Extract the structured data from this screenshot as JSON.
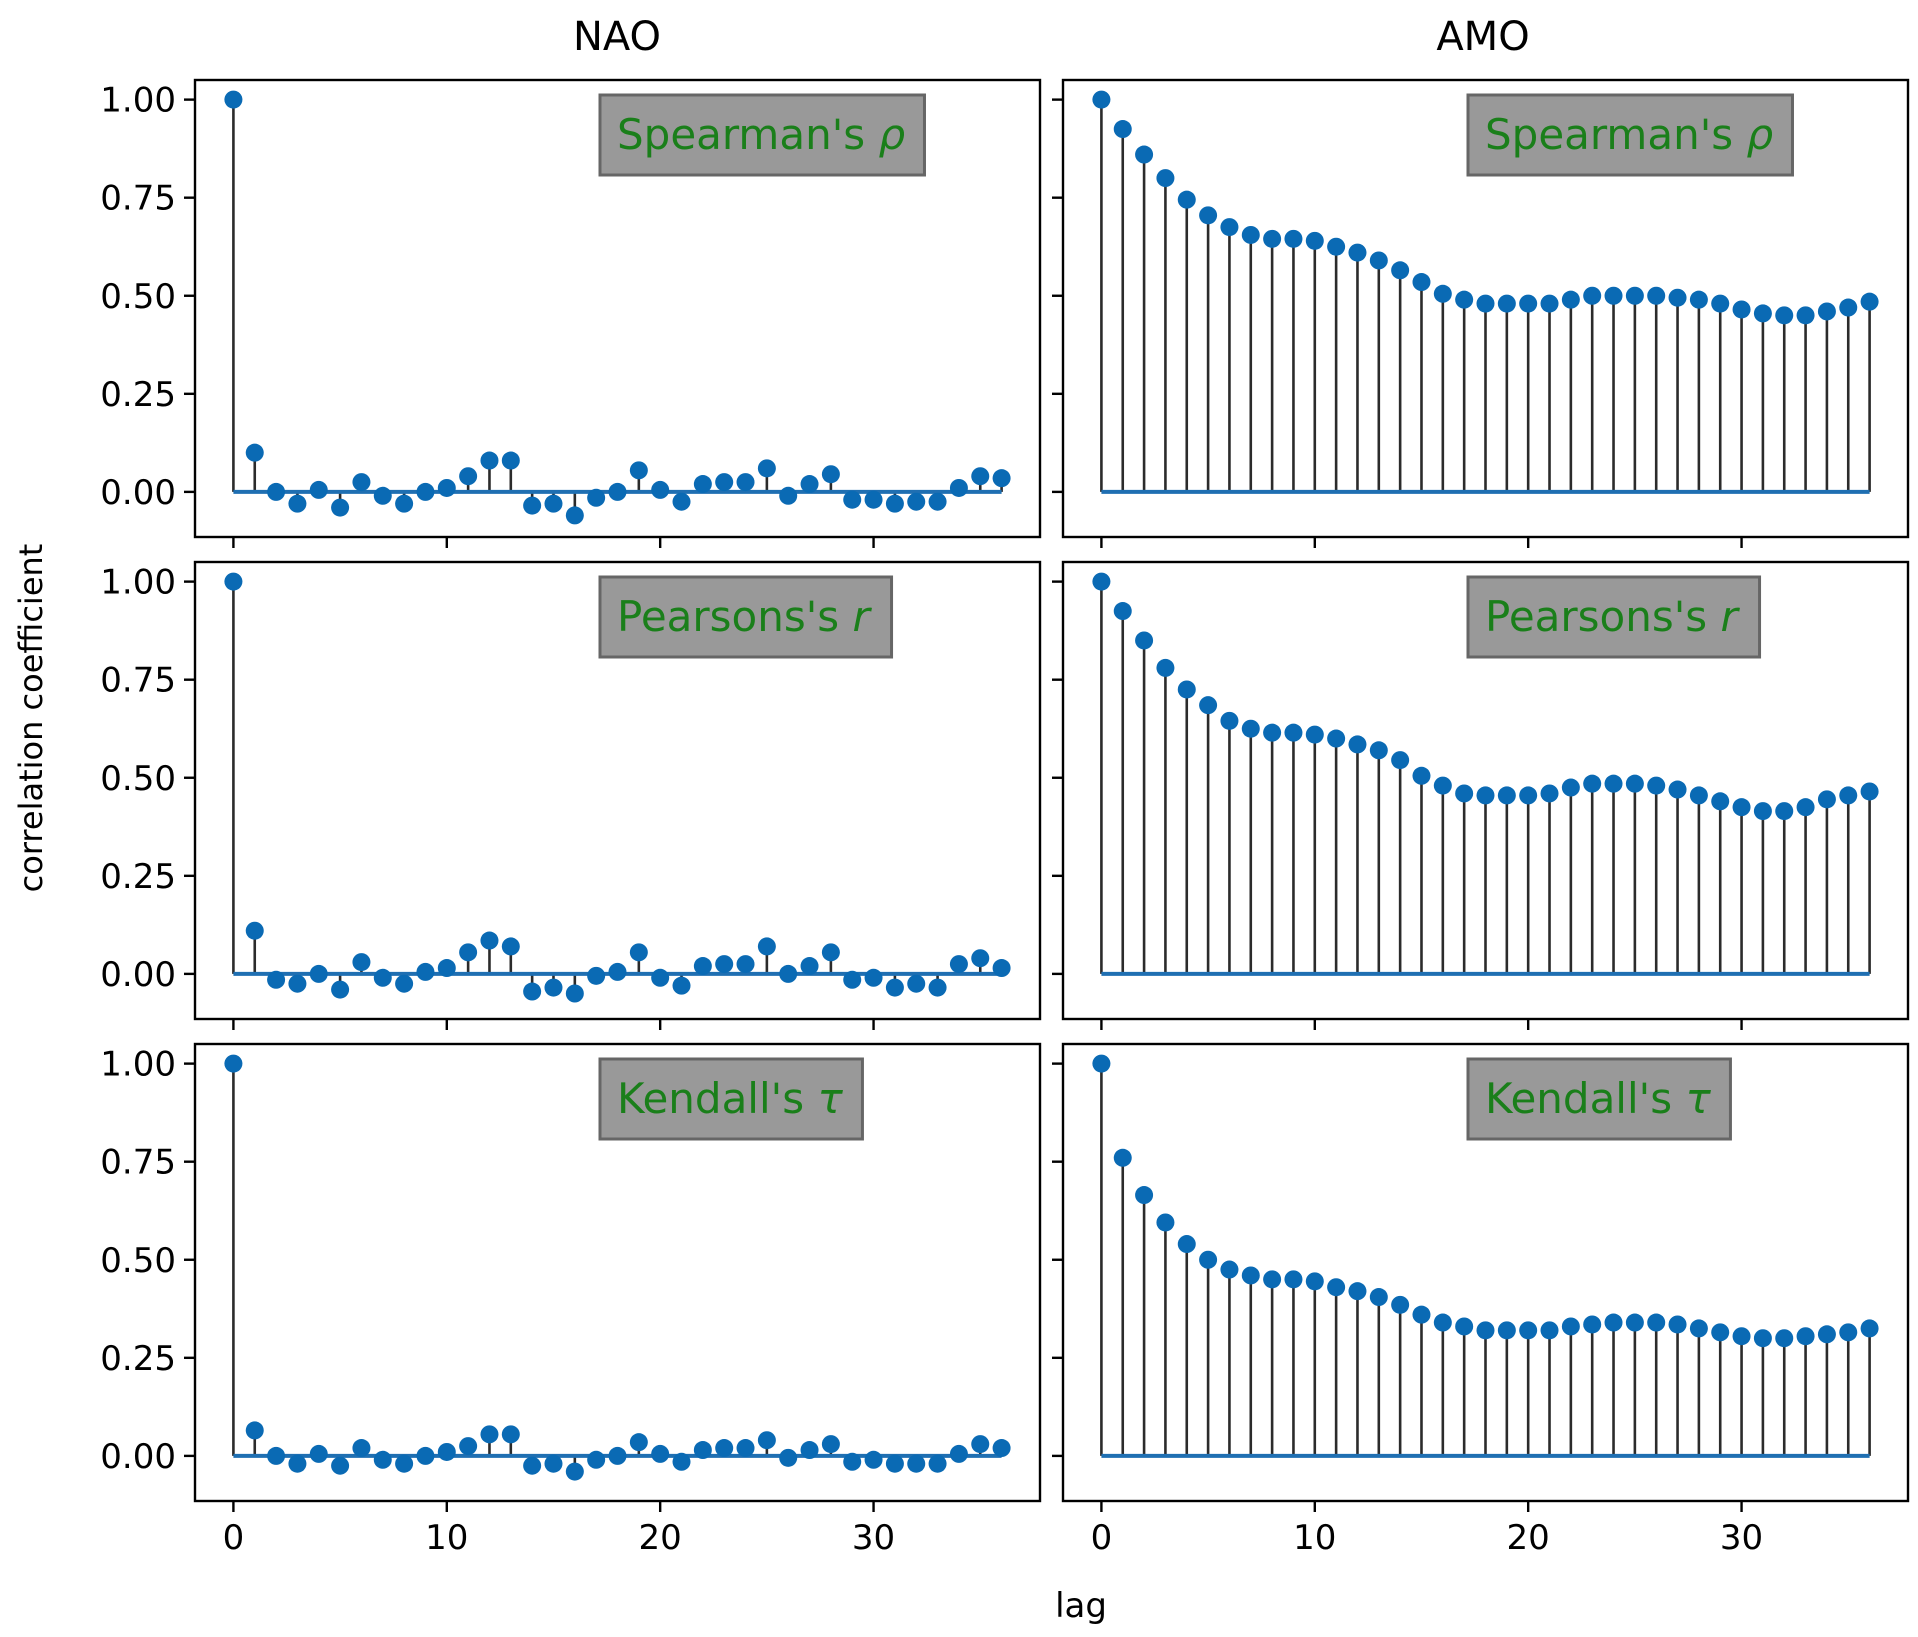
{
  "figure": {
    "col_titles": [
      "NAO",
      "AMO"
    ],
    "ylabel": "correlation coefficient",
    "xlabel": "lag"
  },
  "colors": {
    "marker": "#0a6ab4",
    "stem": "#2b2b2b",
    "baseline": "#1f6fb2",
    "legend_bg": "#999999",
    "legend_border": "#666666",
    "legend_text": "#1a7f1a"
  },
  "chart_data": [
    {
      "type": "stem",
      "name": "NAO-spearman",
      "label_text": "Spearman's ",
      "label_symbol": "ρ",
      "x": [
        0,
        1,
        2,
        3,
        4,
        5,
        6,
        7,
        8,
        9,
        10,
        11,
        12,
        13,
        14,
        15,
        16,
        17,
        18,
        19,
        20,
        21,
        22,
        23,
        24,
        25,
        26,
        27,
        28,
        29,
        30,
        31,
        32,
        33,
        34,
        35,
        36
      ],
      "values": [
        1.0,
        0.1,
        0.0,
        -0.03,
        0.005,
        -0.04,
        0.025,
        -0.01,
        -0.03,
        0.0,
        0.01,
        0.04,
        0.08,
        0.08,
        -0.035,
        -0.03,
        -0.06,
        -0.015,
        0.0,
        0.055,
        0.005,
        -0.025,
        0.02,
        0.025,
        0.025,
        0.06,
        -0.01,
        0.02,
        0.045,
        -0.02,
        -0.02,
        -0.03,
        -0.025,
        -0.025,
        0.01,
        0.04,
        0.035
      ],
      "xlim": [
        -1.8,
        37.8
      ],
      "ylim": [
        -0.115,
        1.05
      ],
      "yticks": [
        0,
        0.25,
        0.5,
        0.75,
        1.0
      ],
      "xticks": [
        0,
        10,
        20,
        30
      ]
    },
    {
      "type": "stem",
      "name": "AMO-spearman",
      "label_text": "Spearman's ",
      "label_symbol": "ρ",
      "x": [
        0,
        1,
        2,
        3,
        4,
        5,
        6,
        7,
        8,
        9,
        10,
        11,
        12,
        13,
        14,
        15,
        16,
        17,
        18,
        19,
        20,
        21,
        22,
        23,
        24,
        25,
        26,
        27,
        28,
        29,
        30,
        31,
        32,
        33,
        34,
        35,
        36
      ],
      "values": [
        1.0,
        0.925,
        0.86,
        0.8,
        0.745,
        0.705,
        0.675,
        0.655,
        0.645,
        0.645,
        0.64,
        0.625,
        0.61,
        0.59,
        0.565,
        0.535,
        0.505,
        0.49,
        0.48,
        0.48,
        0.48,
        0.48,
        0.49,
        0.5,
        0.5,
        0.5,
        0.5,
        0.495,
        0.49,
        0.48,
        0.465,
        0.455,
        0.45,
        0.45,
        0.46,
        0.47,
        0.485
      ],
      "xlim": [
        -1.8,
        37.8
      ],
      "ylim": [
        -0.115,
        1.05
      ],
      "yticks": [
        0,
        0.25,
        0.5,
        0.75,
        1.0
      ],
      "xticks": [
        0,
        10,
        20,
        30
      ]
    },
    {
      "type": "stem",
      "name": "NAO-pearson",
      "label_text": "Pearsons's ",
      "label_symbol": "r",
      "x": [
        0,
        1,
        2,
        3,
        4,
        5,
        6,
        7,
        8,
        9,
        10,
        11,
        12,
        13,
        14,
        15,
        16,
        17,
        18,
        19,
        20,
        21,
        22,
        23,
        24,
        25,
        26,
        27,
        28,
        29,
        30,
        31,
        32,
        33,
        34,
        35,
        36
      ],
      "values": [
        1.0,
        0.11,
        -0.015,
        -0.025,
        0.0,
        -0.04,
        0.03,
        -0.01,
        -0.025,
        0.005,
        0.015,
        0.055,
        0.085,
        0.07,
        -0.045,
        -0.035,
        -0.05,
        -0.005,
        0.005,
        0.055,
        -0.01,
        -0.03,
        0.02,
        0.025,
        0.025,
        0.07,
        0.0,
        0.02,
        0.055,
        -0.015,
        -0.01,
        -0.035,
        -0.025,
        -0.035,
        0.025,
        0.04,
        0.015
      ],
      "xlim": [
        -1.8,
        37.8
      ],
      "ylim": [
        -0.115,
        1.05
      ],
      "yticks": [
        0,
        0.25,
        0.5,
        0.75,
        1.0
      ],
      "xticks": [
        0,
        10,
        20,
        30
      ]
    },
    {
      "type": "stem",
      "name": "AMO-pearson",
      "label_text": "Pearsons's ",
      "label_symbol": "r",
      "x": [
        0,
        1,
        2,
        3,
        4,
        5,
        6,
        7,
        8,
        9,
        10,
        11,
        12,
        13,
        14,
        15,
        16,
        17,
        18,
        19,
        20,
        21,
        22,
        23,
        24,
        25,
        26,
        27,
        28,
        29,
        30,
        31,
        32,
        33,
        34,
        35,
        36
      ],
      "values": [
        1.0,
        0.925,
        0.85,
        0.78,
        0.725,
        0.685,
        0.645,
        0.625,
        0.615,
        0.615,
        0.61,
        0.6,
        0.585,
        0.57,
        0.545,
        0.505,
        0.48,
        0.46,
        0.455,
        0.455,
        0.455,
        0.46,
        0.475,
        0.485,
        0.485,
        0.485,
        0.48,
        0.47,
        0.455,
        0.44,
        0.425,
        0.415,
        0.415,
        0.425,
        0.445,
        0.455,
        0.465
      ],
      "xlim": [
        -1.8,
        37.8
      ],
      "ylim": [
        -0.115,
        1.05
      ],
      "yticks": [
        0,
        0.25,
        0.5,
        0.75,
        1.0
      ],
      "xticks": [
        0,
        10,
        20,
        30
      ]
    },
    {
      "type": "stem",
      "name": "NAO-kendall",
      "label_text": "Kendall's ",
      "label_symbol": "τ",
      "x": [
        0,
        1,
        2,
        3,
        4,
        5,
        6,
        7,
        8,
        9,
        10,
        11,
        12,
        13,
        14,
        15,
        16,
        17,
        18,
        19,
        20,
        21,
        22,
        23,
        24,
        25,
        26,
        27,
        28,
        29,
        30,
        31,
        32,
        33,
        34,
        35,
        36
      ],
      "values": [
        1.0,
        0.065,
        0.0,
        -0.02,
        0.005,
        -0.025,
        0.02,
        -0.01,
        -0.02,
        0.0,
        0.01,
        0.025,
        0.055,
        0.055,
        -0.025,
        -0.02,
        -0.04,
        -0.01,
        0.0,
        0.035,
        0.005,
        -0.015,
        0.015,
        0.02,
        0.02,
        0.04,
        -0.005,
        0.015,
        0.03,
        -0.015,
        -0.01,
        -0.02,
        -0.02,
        -0.02,
        0.005,
        0.03,
        0.02
      ],
      "xlim": [
        -1.8,
        37.8
      ],
      "ylim": [
        -0.115,
        1.05
      ],
      "yticks": [
        0,
        0.25,
        0.5,
        0.75,
        1.0
      ],
      "xticks": [
        0,
        10,
        20,
        30
      ]
    },
    {
      "type": "stem",
      "name": "AMO-kendall",
      "label_text": "Kendall's ",
      "label_symbol": "τ",
      "x": [
        0,
        1,
        2,
        3,
        4,
        5,
        6,
        7,
        8,
        9,
        10,
        11,
        12,
        13,
        14,
        15,
        16,
        17,
        18,
        19,
        20,
        21,
        22,
        23,
        24,
        25,
        26,
        27,
        28,
        29,
        30,
        31,
        32,
        33,
        34,
        35,
        36
      ],
      "values": [
        1.0,
        0.76,
        0.665,
        0.595,
        0.54,
        0.5,
        0.475,
        0.46,
        0.45,
        0.45,
        0.445,
        0.43,
        0.42,
        0.405,
        0.385,
        0.36,
        0.34,
        0.33,
        0.32,
        0.32,
        0.32,
        0.32,
        0.33,
        0.335,
        0.34,
        0.34,
        0.34,
        0.335,
        0.325,
        0.315,
        0.305,
        0.3,
        0.3,
        0.305,
        0.31,
        0.315,
        0.325
      ],
      "xlim": [
        -1.8,
        37.8
      ],
      "ylim": [
        -0.115,
        1.05
      ],
      "yticks": [
        0,
        0.25,
        0.5,
        0.75,
        1.0
      ],
      "xticks": [
        0,
        10,
        20,
        30
      ]
    }
  ]
}
